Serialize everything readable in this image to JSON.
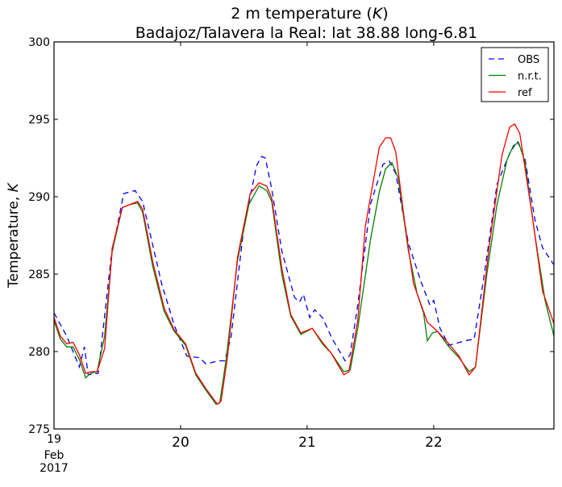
{
  "chart_data": {
    "type": "line",
    "title": "2 m temperature (K)",
    "title_parts": {
      "prefix": "2 m temperature (",
      "var": "K",
      "suffix": ")"
    },
    "subtitle": "Badajoz/Talavera la Real: lat 38.88 long-6.81",
    "xlabel": "",
    "ylabel": "Temperature, K",
    "ylabel_parts": {
      "prefix": "Temperature, ",
      "var": "K"
    },
    "x_units": "days since 19 Feb 2017 00:00",
    "xlim": [
      0,
      3.95
    ],
    "ylim": [
      275,
      300
    ],
    "yticks": [
      275,
      280,
      285,
      290,
      295,
      300
    ],
    "xticks": [
      0,
      1,
      2,
      3
    ],
    "xtick_labels": [
      "19",
      "20",
      "21",
      "22"
    ],
    "xtick_first_extra": [
      "Feb",
      "2017"
    ],
    "grid": false,
    "legend_position": "top-right",
    "series": [
      {
        "name": "OBS",
        "color": "#0000ff",
        "style": "dashed",
        "points": [
          [
            0,
            282.5
          ],
          [
            0.1,
            281
          ],
          [
            0.2,
            279
          ],
          [
            0.24,
            280.3
          ],
          [
            0.27,
            278.5
          ],
          [
            0.35,
            278.6
          ],
          [
            0.45,
            286
          ],
          [
            0.55,
            290.2
          ],
          [
            0.64,
            290.4
          ],
          [
            0.7,
            289.7
          ],
          [
            0.85,
            284.4
          ],
          [
            0.95,
            281.7
          ],
          [
            1.05,
            279.7
          ],
          [
            1.15,
            279.6
          ],
          [
            1.2,
            279.2
          ],
          [
            1.3,
            279.4
          ],
          [
            1.35,
            279.4
          ],
          [
            1.4,
            281
          ],
          [
            1.5,
            288
          ],
          [
            1.6,
            292
          ],
          [
            1.64,
            292.6
          ],
          [
            1.67,
            292.5
          ],
          [
            1.72,
            290.5
          ],
          [
            1.8,
            286.5
          ],
          [
            1.9,
            283.5
          ],
          [
            1.94,
            283.2
          ],
          [
            1.97,
            283.7
          ],
          [
            2.02,
            282.2
          ],
          [
            2.06,
            282.7
          ],
          [
            2.12,
            282.2
          ],
          [
            2.2,
            280.8
          ],
          [
            2.3,
            279.4
          ],
          [
            2.34,
            279.8
          ],
          [
            2.4,
            283
          ],
          [
            2.5,
            289.5
          ],
          [
            2.6,
            292.1
          ],
          [
            2.65,
            292.3
          ],
          [
            2.7,
            291.5
          ],
          [
            2.8,
            287
          ],
          [
            2.9,
            284.5
          ],
          [
            2.97,
            283
          ],
          [
            3.0,
            283.3
          ],
          [
            3.05,
            281.5
          ],
          [
            3.12,
            280.4
          ],
          [
            3.25,
            280.7
          ],
          [
            3.32,
            280.8
          ],
          [
            3.4,
            285
          ],
          [
            3.5,
            290.8
          ],
          [
            3.6,
            292.8
          ],
          [
            3.66,
            293.6
          ],
          [
            3.72,
            292.5
          ],
          [
            3.8,
            288.5
          ],
          [
            3.86,
            286.7
          ],
          [
            3.95,
            285.6
          ]
        ]
      },
      {
        "name": "n.r.t.",
        "color": "#008000",
        "style": "solid",
        "points": [
          [
            0,
            282
          ],
          [
            0.05,
            280.8
          ],
          [
            0.1,
            280.3
          ],
          [
            0.15,
            280.3
          ],
          [
            0.2,
            279.5
          ],
          [
            0.25,
            278.3
          ],
          [
            0.29,
            278.6
          ],
          [
            0.34,
            278.7
          ],
          [
            0.4,
            281
          ],
          [
            0.46,
            286.5
          ],
          [
            0.54,
            289.3
          ],
          [
            0.6,
            289.5
          ],
          [
            0.66,
            289.6
          ],
          [
            0.7,
            289
          ],
          [
            0.78,
            285.5
          ],
          [
            0.87,
            282.6
          ],
          [
            0.95,
            281.3
          ],
          [
            1.04,
            280.4
          ],
          [
            1.12,
            278.5
          ],
          [
            1.2,
            277.5
          ],
          [
            1.28,
            276.6
          ],
          [
            1.31,
            276.7
          ],
          [
            1.36,
            279.5
          ],
          [
            1.45,
            285.9
          ],
          [
            1.54,
            289.5
          ],
          [
            1.62,
            290.7
          ],
          [
            1.68,
            290.4
          ],
          [
            1.72,
            289.7
          ],
          [
            1.8,
            285
          ],
          [
            1.87,
            282.3
          ],
          [
            1.95,
            281.1
          ],
          [
            2.04,
            281.5
          ],
          [
            2.12,
            280.5
          ],
          [
            2.19,
            279.9
          ],
          [
            2.29,
            278.7
          ],
          [
            2.34,
            278.8
          ],
          [
            2.4,
            281.5
          ],
          [
            2.5,
            287.2
          ],
          [
            2.57,
            290.3
          ],
          [
            2.62,
            291.8
          ],
          [
            2.67,
            292.2
          ],
          [
            2.72,
            291.2
          ],
          [
            2.8,
            286.5
          ],
          [
            2.87,
            283.7
          ],
          [
            2.92,
            282.5
          ],
          [
            2.95,
            280.7
          ],
          [
            2.99,
            281.2
          ],
          [
            3.03,
            281.3
          ],
          [
            3.12,
            280.3
          ],
          [
            3.2,
            279.6
          ],
          [
            3.28,
            278.7
          ],
          [
            3.33,
            279
          ],
          [
            3.42,
            285
          ],
          [
            3.5,
            289.5
          ],
          [
            3.58,
            292.4
          ],
          [
            3.63,
            293.3
          ],
          [
            3.67,
            293.5
          ],
          [
            3.72,
            292.3
          ],
          [
            3.8,
            287.5
          ],
          [
            3.88,
            283.3
          ],
          [
            3.95,
            281
          ]
        ]
      },
      {
        "name": "ref",
        "color": "#ff0000",
        "style": "solid",
        "points": [
          [
            0,
            282.2
          ],
          [
            0.05,
            281
          ],
          [
            0.1,
            280.5
          ],
          [
            0.15,
            280.6
          ],
          [
            0.2,
            279.8
          ],
          [
            0.25,
            278.6
          ],
          [
            0.29,
            278.7
          ],
          [
            0.34,
            278.7
          ],
          [
            0.4,
            280.2
          ],
          [
            0.46,
            286.7
          ],
          [
            0.54,
            289.3
          ],
          [
            0.6,
            289.5
          ],
          [
            0.66,
            289.7
          ],
          [
            0.7,
            289.2
          ],
          [
            0.78,
            285.8
          ],
          [
            0.87,
            282.8
          ],
          [
            0.95,
            281.4
          ],
          [
            1.04,
            280.5
          ],
          [
            1.12,
            278.6
          ],
          [
            1.2,
            277.6
          ],
          [
            1.29,
            276.6
          ],
          [
            1.32,
            276.8
          ],
          [
            1.37,
            279.6
          ],
          [
            1.45,
            286.1
          ],
          [
            1.55,
            290.2
          ],
          [
            1.62,
            290.9
          ],
          [
            1.68,
            290.7
          ],
          [
            1.72,
            289.9
          ],
          [
            1.8,
            285.4
          ],
          [
            1.87,
            282.4
          ],
          [
            1.95,
            281.2
          ],
          [
            2.04,
            281.5
          ],
          [
            2.12,
            280.6
          ],
          [
            2.19,
            279.9
          ],
          [
            2.29,
            278.5
          ],
          [
            2.33,
            278.7
          ],
          [
            2.4,
            282
          ],
          [
            2.46,
            288.1
          ],
          [
            2.57,
            293.2
          ],
          [
            2.62,
            293.8
          ],
          [
            2.66,
            293.8
          ],
          [
            2.7,
            292.9
          ],
          [
            2.77,
            288.4
          ],
          [
            2.84,
            284.4
          ],
          [
            2.95,
            281.9
          ],
          [
            3.03,
            281.3
          ],
          [
            3.12,
            280.5
          ],
          [
            3.2,
            279.7
          ],
          [
            3.28,
            278.5
          ],
          [
            3.33,
            279
          ],
          [
            3.44,
            286.9
          ],
          [
            3.54,
            292.7
          ],
          [
            3.6,
            294.5
          ],
          [
            3.64,
            294.7
          ],
          [
            3.68,
            294.1
          ],
          [
            3.78,
            288.7
          ],
          [
            3.86,
            283.9
          ],
          [
            3.95,
            281.8
          ]
        ]
      }
    ]
  }
}
